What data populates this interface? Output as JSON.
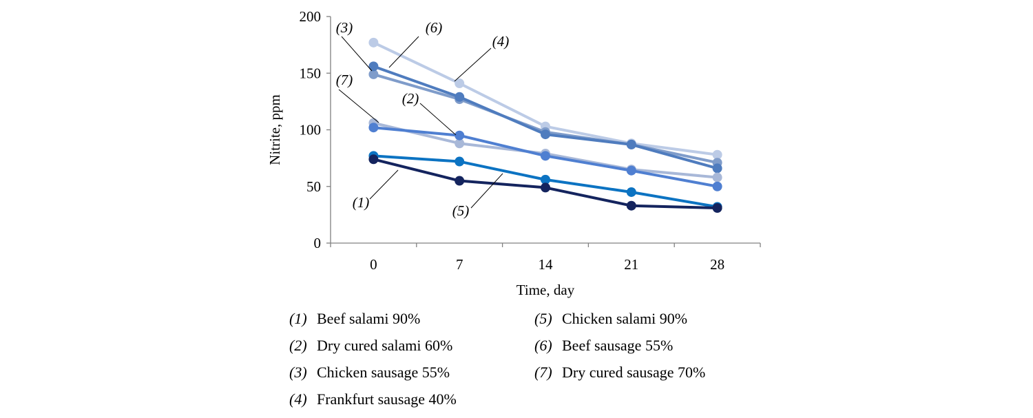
{
  "chart_data": {
    "type": "line",
    "xlabel": "Time, day",
    "ylabel": "Nitrite, ppm",
    "x": [
      0,
      7,
      14,
      21,
      28
    ],
    "xticks": [
      "0",
      "7",
      "14",
      "21",
      "28"
    ],
    "yticks": [
      "0",
      "50",
      "100",
      "150",
      "200"
    ],
    "ylim": [
      0,
      200
    ],
    "grid": false,
    "legend_position": "bottom",
    "series": [
      {
        "id": "(1)",
        "name": "Beef salami 90%",
        "color": "#14245e",
        "values": [
          74,
          55,
          49,
          33,
          31
        ],
        "label_pos": "left-low"
      },
      {
        "id": "(2)",
        "name": "Dry cured salami 60%",
        "color": "#4f7fd1",
        "values": [
          102,
          95,
          77,
          64,
          50
        ],
        "label_pos": "above-7"
      },
      {
        "id": "(3)",
        "name": "Chicken sausage 55%",
        "color": "#7f9cca",
        "values": [
          149,
          127,
          98,
          87,
          71
        ],
        "label_pos": "top-left"
      },
      {
        "id": "(4)",
        "name": "Frankfurt sausage 40%",
        "color": "#bccbe6",
        "values": [
          177,
          141,
          103,
          88,
          78
        ],
        "label_pos": "top-right"
      },
      {
        "id": "(5)",
        "name": "Chicken salami 90%",
        "color": "#0c73c2",
        "values": [
          77,
          72,
          56,
          45,
          32
        ],
        "label_pos": "below-7"
      },
      {
        "id": "(6)",
        "name": "Beef sausage 55%",
        "color": "#4f7cbe",
        "values": [
          156,
          129,
          96,
          87,
          66
        ],
        "label_pos": "top"
      },
      {
        "id": "(7)",
        "name": "Dry cured sausage 70%",
        "color": "#a8b8d8",
        "values": [
          106,
          88,
          79,
          65,
          58
        ],
        "label_pos": "left-mid"
      }
    ]
  }
}
